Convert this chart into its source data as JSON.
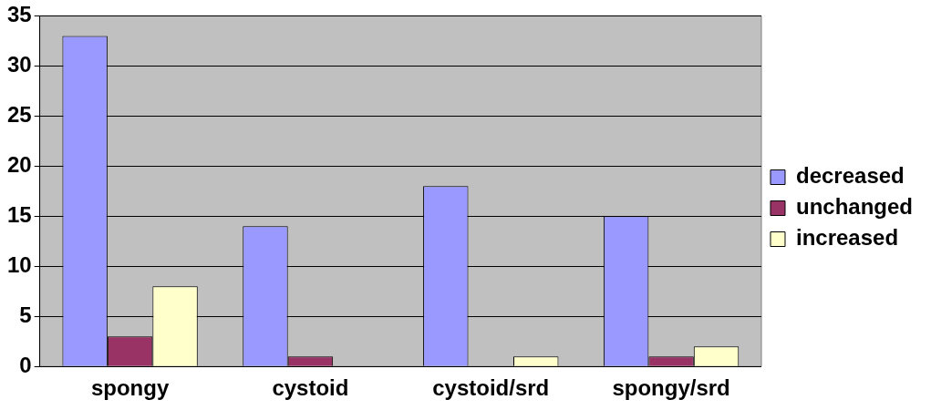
{
  "chart_data": {
    "type": "bar",
    "categories": [
      "spongy",
      "cystoid",
      "cystoid/srd",
      "spongy/srd"
    ],
    "series": [
      {
        "name": "decreased",
        "color": "#9999ff",
        "values": [
          33,
          14,
          18,
          15
        ]
      },
      {
        "name": "unchanged",
        "color": "#993366",
        "values": [
          3,
          1,
          0,
          1
        ]
      },
      {
        "name": "increased",
        "color": "#ffffcc",
        "values": [
          8,
          0,
          1,
          2
        ]
      }
    ],
    "ylim": [
      0,
      35
    ],
    "yticks": [
      0,
      5,
      10,
      15,
      20,
      25,
      30,
      35
    ],
    "grid": "y",
    "legend": "right"
  }
}
